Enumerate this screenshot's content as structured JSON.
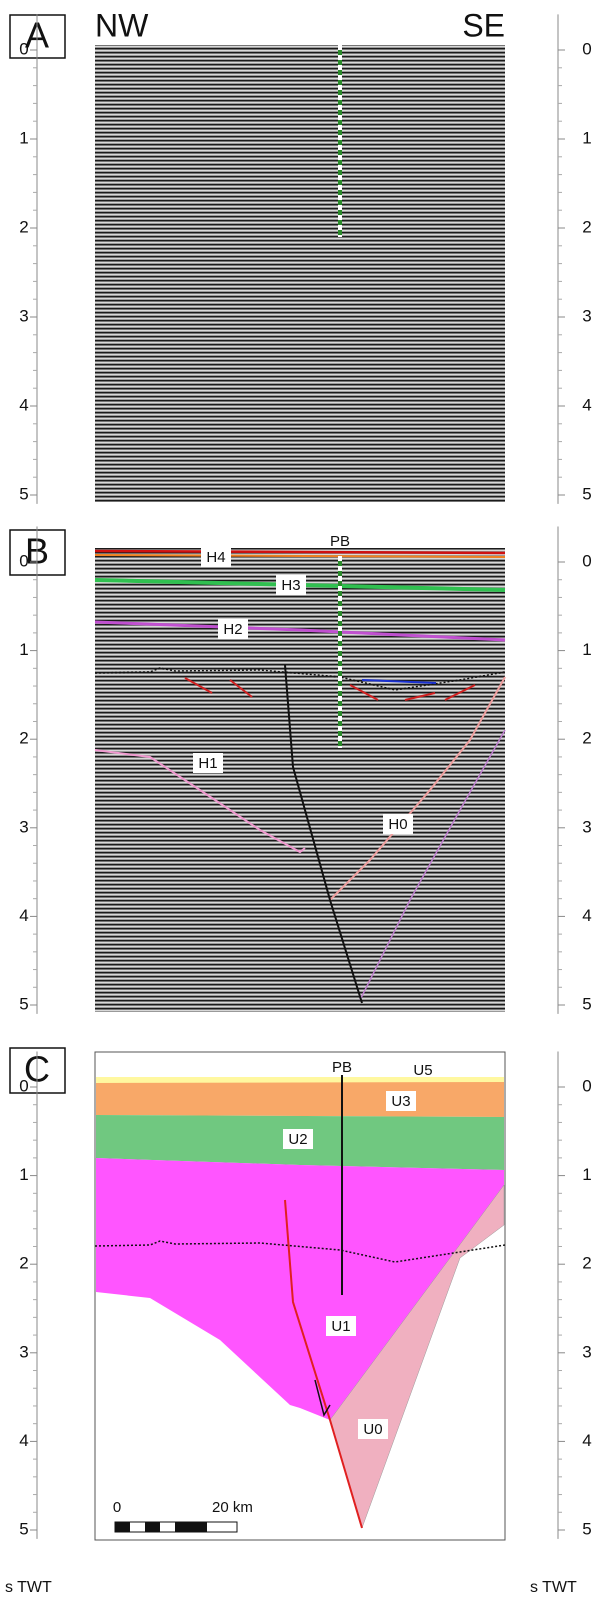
{
  "axis": {
    "ticks": [
      0,
      1,
      2,
      3,
      4,
      5
    ],
    "unit": "s TWT"
  },
  "panels": [
    {
      "label": "A",
      "top_left": "NW",
      "top_right": "SE"
    },
    {
      "label": "B",
      "annotations": [
        "PB",
        "H4",
        "H3",
        "H2",
        "H1",
        "H0"
      ]
    },
    {
      "label": "C",
      "annotations": [
        "PB",
        "U5",
        "U3",
        "U2",
        "U1",
        "U0"
      ],
      "scale_bar": [
        "0",
        "20 km"
      ]
    }
  ]
}
